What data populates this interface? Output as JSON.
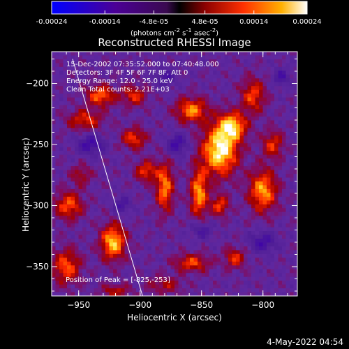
{
  "colorbar": {
    "tick_labels": [
      "-0.00024",
      "-0.00014",
      "-4.8e-05",
      "4.8e-05",
      "0.00014",
      "0.00024"
    ],
    "tick_values": [
      -0.00024,
      -0.00014,
      -4.8e-05,
      4.8e-05,
      0.00014,
      0.00024
    ],
    "range": [
      -0.00024,
      0.00024
    ],
    "units_prefix": "(photons cm",
    "units_exp1": "-2",
    "units_mid": " s",
    "units_exp2": "-1",
    "units_end": " asec",
    "units_exp3": "-2",
    "units_close": ")"
  },
  "chart_data": {
    "type": "heatmap",
    "title": "Reconstructed RHESSI Image",
    "xlabel": "Heliocentric X (arcsec)",
    "ylabel": "Heliocentric Y (arcsec)",
    "xlim": [
      -972,
      -772
    ],
    "ylim": [
      -374,
      -174
    ],
    "x_ticks": [
      -950,
      -900,
      -850,
      -800
    ],
    "y_ticks": [
      -200,
      -250,
      -300,
      -350
    ],
    "x_tick_labels": [
      "−950",
      "−900",
      "−850",
      "−800"
    ],
    "y_tick_labels": [
      "−200",
      "−250",
      "−300",
      "−350"
    ],
    "colormap": "rhessi-blue-purple-red-yellow-white",
    "limb_line": [
      [
        -955,
        -180
      ],
      [
        -898,
        -374
      ]
    ],
    "peak": [
      -825,
      -253
    ],
    "annotations": [
      "15-Dec-2002 07:35:52.000 to 07:40:48.000",
      "Detectors: 3F 4F 5F 6F 7F 8F, Att 0",
      "Energy Range: 12.0 - 25.0 keV",
      "Clean   Total counts: 2.21E+03"
    ],
    "peak_label": "Position of Peak = [-825,-253]",
    "blobs": [
      {
        "x": -835,
        "y": -255,
        "amp": 1.0,
        "sx": 10,
        "sy": 14
      },
      {
        "x": -825,
        "y": -235,
        "amp": 0.8,
        "sx": 8,
        "sy": 8
      },
      {
        "x": -858,
        "y": -222,
        "amp": 0.7,
        "sx": 9,
        "sy": 7
      },
      {
        "x": -808,
        "y": -210,
        "amp": 0.55,
        "sx": 7,
        "sy": 10
      },
      {
        "x": -792,
        "y": -250,
        "amp": 0.5,
        "sx": 6,
        "sy": 8
      },
      {
        "x": -800,
        "y": -288,
        "amp": 0.75,
        "sx": 8,
        "sy": 12
      },
      {
        "x": -852,
        "y": -290,
        "amp": 0.75,
        "sx": 5,
        "sy": 14
      },
      {
        "x": -835,
        "y": -300,
        "amp": 0.55,
        "sx": 5,
        "sy": 6
      },
      {
        "x": -880,
        "y": -285,
        "amp": 0.7,
        "sx": 5,
        "sy": 14
      },
      {
        "x": -895,
        "y": -272,
        "amp": 0.55,
        "sx": 6,
        "sy": 6
      },
      {
        "x": -905,
        "y": -245,
        "amp": 0.55,
        "sx": 7,
        "sy": 6
      },
      {
        "x": -945,
        "y": -230,
        "amp": 0.5,
        "sx": 10,
        "sy": 6
      },
      {
        "x": -932,
        "y": -210,
        "amp": 0.65,
        "sx": 8,
        "sy": 6
      },
      {
        "x": -905,
        "y": -210,
        "amp": 0.5,
        "sx": 7,
        "sy": 6
      },
      {
        "x": -922,
        "y": -330,
        "amp": 0.85,
        "sx": 7,
        "sy": 10
      },
      {
        "x": -958,
        "y": -300,
        "amp": 0.6,
        "sx": 8,
        "sy": 8
      },
      {
        "x": -960,
        "y": -350,
        "amp": 0.6,
        "sx": 8,
        "sy": 10
      },
      {
        "x": -858,
        "y": -347,
        "amp": 0.55,
        "sx": 10,
        "sy": 5
      },
      {
        "x": -823,
        "y": -343,
        "amp": 0.5,
        "sx": 6,
        "sy": 6
      },
      {
        "x": -880,
        "y": -365,
        "amp": 0.35,
        "sx": 10,
        "sy": 5
      },
      {
        "x": -948,
        "y": -275,
        "amp": 0.35,
        "sx": 6,
        "sy": 6
      },
      {
        "x": -920,
        "y": -370,
        "amp": 0.4,
        "sx": 8,
        "sy": 4
      }
    ],
    "negative_blobs": [
      {
        "x": -940,
        "y": -250,
        "amp": 0.5,
        "sx": 8,
        "sy": 6
      },
      {
        "x": -870,
        "y": -250,
        "amp": 0.5,
        "sx": 6,
        "sy": 6
      },
      {
        "x": -800,
        "y": -330,
        "amp": 0.45,
        "sx": 8,
        "sy": 6
      },
      {
        "x": -880,
        "y": -195,
        "amp": 0.4,
        "sx": 6,
        "sy": 5
      },
      {
        "x": -915,
        "y": -300,
        "amp": 0.4,
        "sx": 5,
        "sy": 5
      },
      {
        "x": -850,
        "y": -320,
        "amp": 0.4,
        "sx": 6,
        "sy": 5
      },
      {
        "x": -785,
        "y": -195,
        "amp": 0.4,
        "sx": 5,
        "sy": 5
      }
    ]
  },
  "footer": "4-May-2022 04:54"
}
